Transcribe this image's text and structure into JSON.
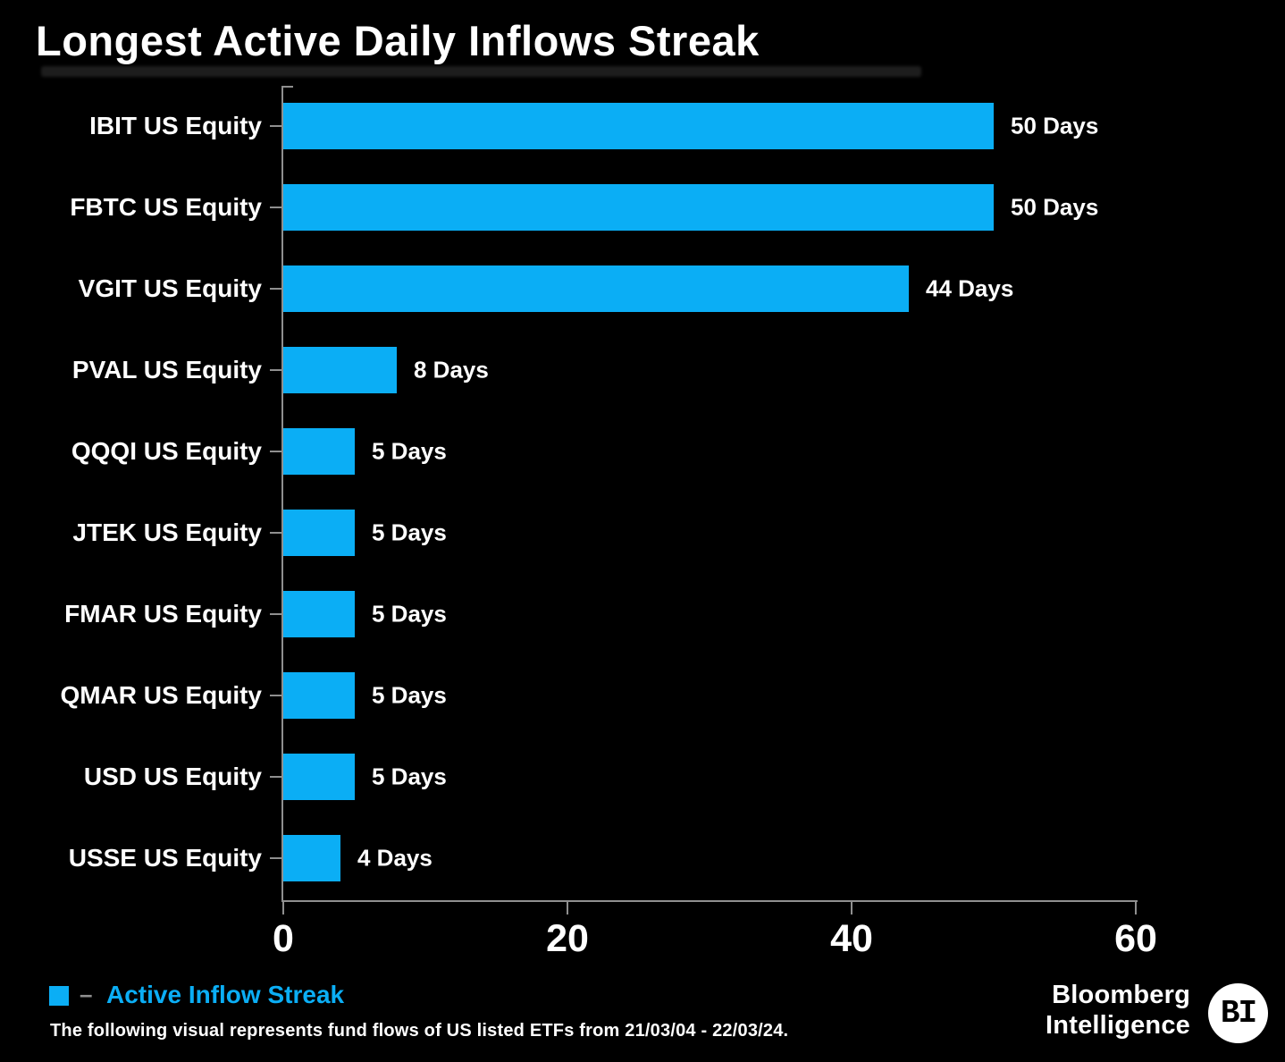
{
  "title": "Longest Active Daily Inflows Streak",
  "chart_data": {
    "type": "bar",
    "orientation": "horizontal",
    "title": "Longest Active Daily Inflows Streak",
    "categories": [
      "IBIT US Equity",
      "FBTC US Equity",
      "VGIT US Equity",
      "PVAL US Equity",
      "QQQI US Equity",
      "JTEK US Equity",
      "FMAR US Equity",
      "QMAR US Equity",
      "USD US Equity",
      "USSE US Equity"
    ],
    "values": [
      50,
      50,
      44,
      8,
      5,
      5,
      5,
      5,
      5,
      4
    ],
    "value_labels": [
      "50 Days",
      "50 Days",
      "44 Days",
      "8 Days",
      "5 Days",
      "5 Days",
      "5 Days",
      "5 Days",
      "5 Days",
      "4 Days"
    ],
    "xlabel": "",
    "ylabel": "",
    "xlim": [
      0,
      60
    ],
    "xticks": [
      "0",
      "20",
      "40",
      "60"
    ],
    "xtick_values": [
      0,
      20,
      40,
      60
    ],
    "grid": false,
    "legend_position": "bottom-left",
    "bar_color": "#0baef5",
    "axis_color": "#8f8f8f",
    "background_color": "#000000",
    "text_color": "#ffffff"
  },
  "legend": {
    "dash": "–",
    "label": "Active Inflow Streak"
  },
  "footnote": "The following visual represents fund flows of US listed ETFs from 21/03/04 - 22/03/24.",
  "branding": {
    "line1": "Bloomberg",
    "line2": "Intelligence",
    "badge": "BI"
  }
}
